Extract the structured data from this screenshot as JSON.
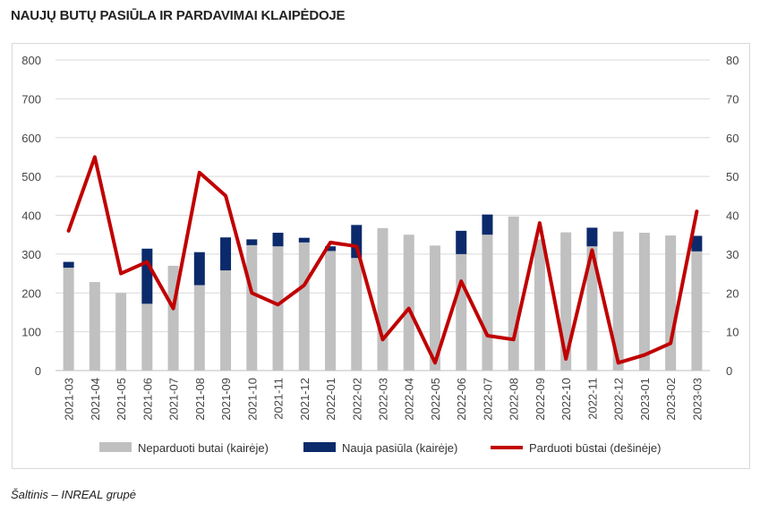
{
  "title": "NAUJŲ BUTŲ PASIŪLA IR PARDAVIMAI KLAIPĖDOJE",
  "source": "Šaltinis – INREAL grupė",
  "colors": {
    "unsold": "#c0c0c0",
    "new_supply": "#0b2a6b",
    "sold": "#c00000",
    "grid": "#d9d9d9"
  },
  "chart_data": {
    "type": "bar",
    "stacked": true,
    "categories": [
      "2021-03",
      "2021-04",
      "2021-05",
      "2021-06",
      "2021-07",
      "2021-08",
      "2021-09",
      "2021-10",
      "2021-11",
      "2021-12",
      "2022-01",
      "2022-02",
      "2022-03",
      "2022-04",
      "2022-05",
      "2022-06",
      "2022-07",
      "2022-08",
      "2022-09",
      "2022-10",
      "2022-11",
      "2022-12",
      "2023-01",
      "2023-02",
      "2023-03"
    ],
    "series": [
      {
        "name": "Neparduoti butai (kairėje)",
        "type": "bar",
        "axis": "left",
        "values": [
          265,
          228,
          200,
          172,
          270,
          220,
          258,
          323,
          320,
          330,
          308,
          290,
          367,
          350,
          322,
          300,
          350,
          397,
          338,
          356,
          320,
          358,
          355,
          348,
          307
        ]
      },
      {
        "name": "Nauja pasiūla (kairėje)",
        "type": "bar",
        "axis": "left",
        "values": [
          15,
          0,
          0,
          142,
          0,
          85,
          85,
          15,
          35,
          12,
          12,
          85,
          0,
          0,
          0,
          60,
          52,
          0,
          0,
          0,
          48,
          0,
          0,
          0,
          40
        ]
      },
      {
        "name": "Parduoti būstai (dešinėje)",
        "type": "line",
        "axis": "right",
        "values": [
          36,
          55,
          25,
          28,
          16,
          51,
          45,
          20,
          17,
          22,
          33,
          32,
          8,
          16,
          2,
          23,
          9,
          8,
          38,
          3,
          31,
          2,
          4,
          7,
          41
        ]
      }
    ],
    "y_left": {
      "min": 0,
      "max": 800,
      "ticks": [
        "0",
        "100",
        "200",
        "300",
        "400",
        "500",
        "600",
        "700",
        "800"
      ]
    },
    "y_right": {
      "min": 0,
      "max": 80,
      "ticks": [
        "0",
        "10",
        "20",
        "30",
        "40",
        "50",
        "60",
        "70",
        "80"
      ]
    },
    "grid": true,
    "legend_position": "bottom"
  }
}
